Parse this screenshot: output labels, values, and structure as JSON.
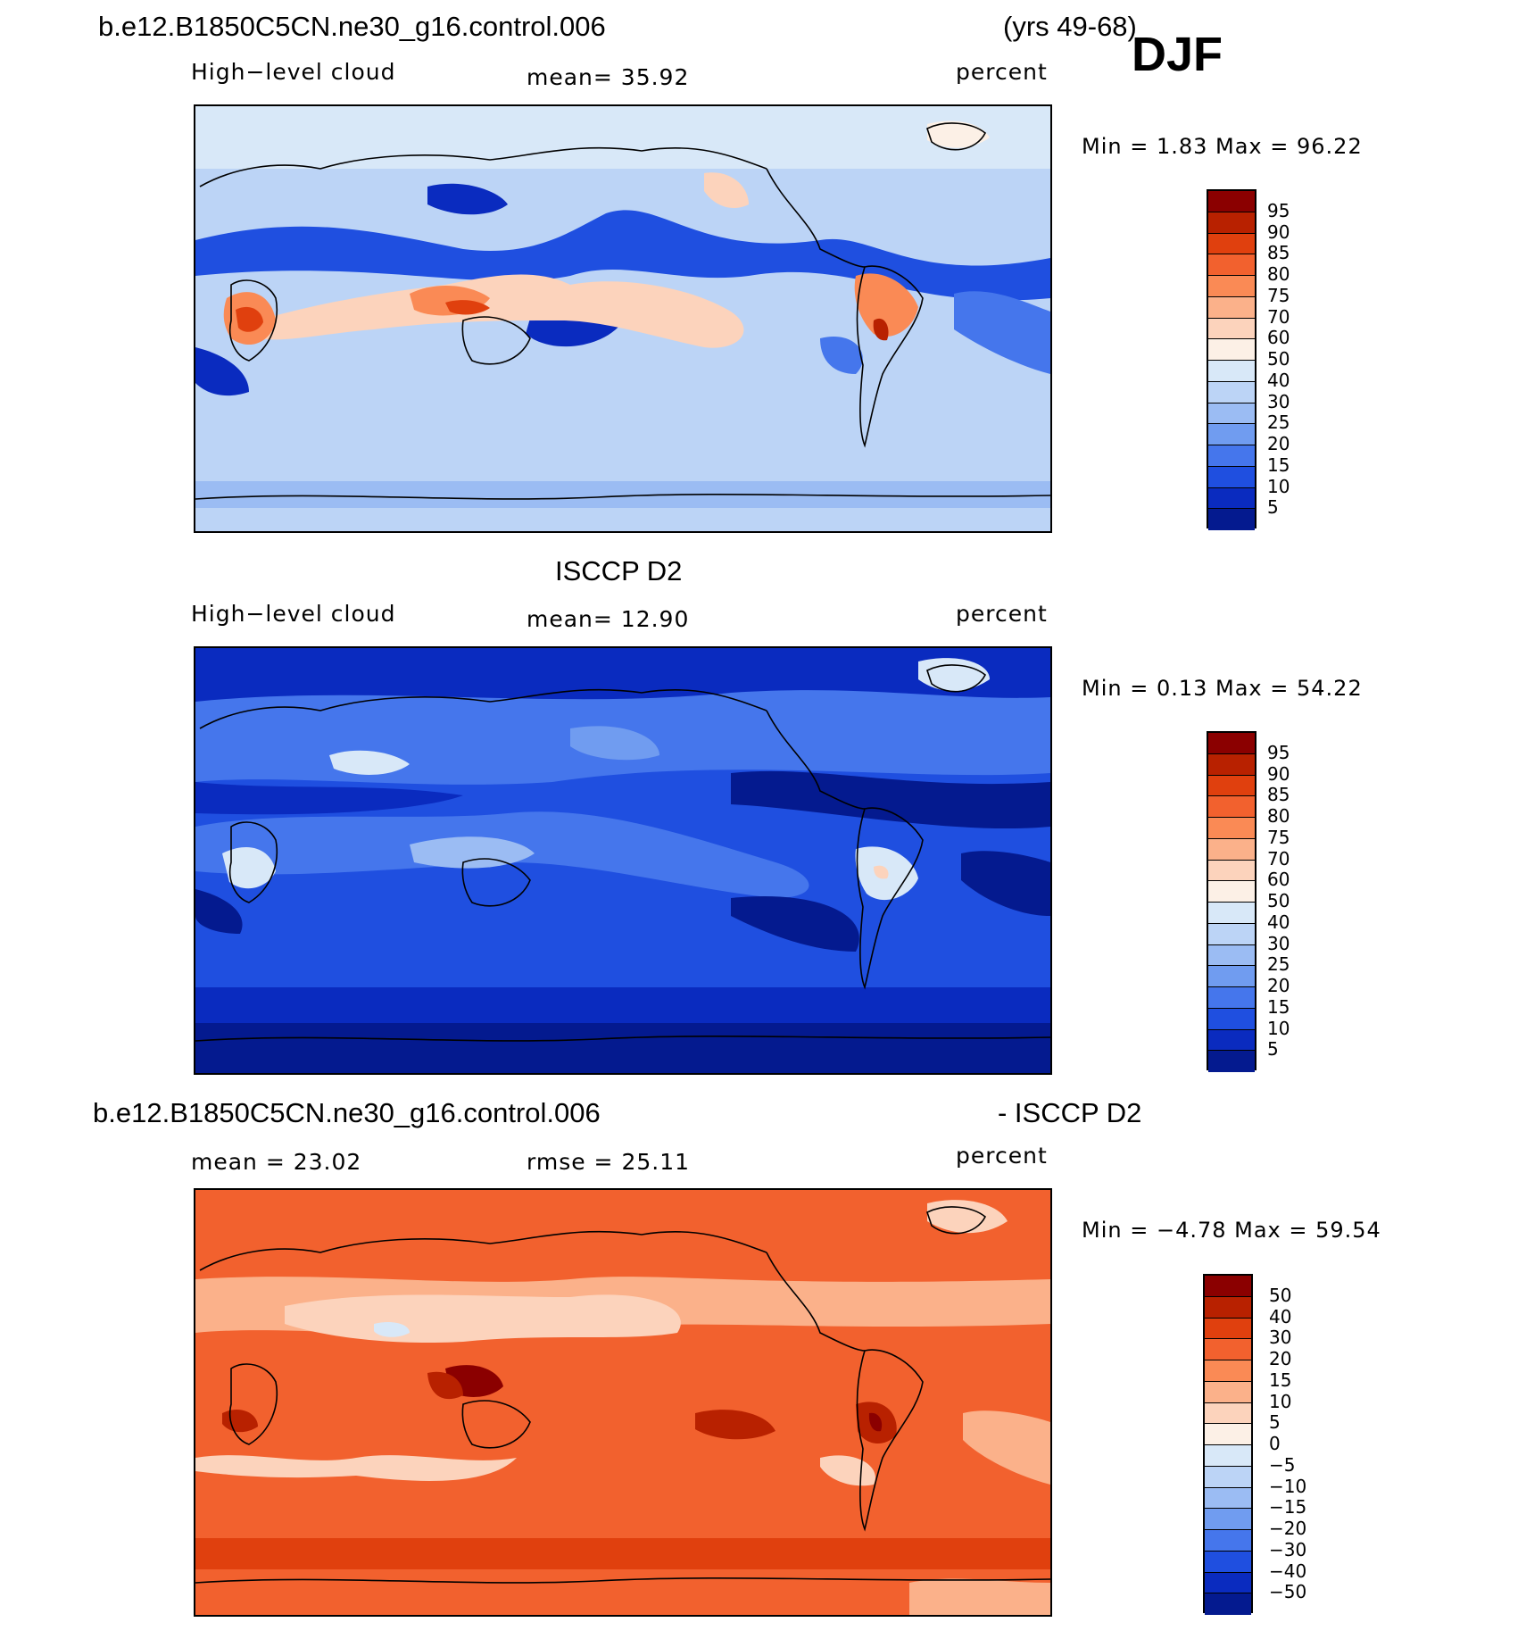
{
  "header": {
    "case_title": "b.e12.B1850C5CN.ne30_g16.control.006",
    "years": "(yrs 49-68)",
    "season": "DJF"
  },
  "panels": [
    {
      "title": "",
      "left_label": "High−level cloud",
      "center_label": "mean=   35.92",
      "units": "percent",
      "minmax": "Min =     1.83 Max =   96.22",
      "colorbar_labels": [
        "95",
        "90",
        "85",
        "80",
        "75",
        "70",
        "60",
        "50",
        "40",
        "30",
        "25",
        "20",
        "15",
        "10",
        "5"
      ],
      "palette": "cloud"
    },
    {
      "title": "ISCCP D2",
      "left_label": "High−level cloud",
      "center_label": "mean=   12.90",
      "units": "percent",
      "minmax": "Min =     0.13 Max =   54.22",
      "colorbar_labels": [
        "95",
        "90",
        "85",
        "80",
        "75",
        "70",
        "60",
        "50",
        "40",
        "30",
        "25",
        "20",
        "15",
        "10",
        "5"
      ],
      "palette": "cloud"
    },
    {
      "title_left": "b.e12.B1850C5CN.ne30_g16.control.006",
      "title_right": "- ISCCP D2",
      "left_label": "mean =   23.02",
      "center_label": "rmse =   25.11",
      "units": "percent",
      "minmax": "Min =  −4.78 Max =   59.54",
      "colorbar_labels": [
        "50",
        "40",
        "30",
        "20",
        "15",
        "10",
        "5",
        "0",
        "−5",
        "−10",
        "−15",
        "−20",
        "−30",
        "−40",
        "−50"
      ],
      "palette": "diff"
    }
  ],
  "colors": {
    "palette_top_to_bottom": [
      "#8b0000",
      "#b82100",
      "#e0400e",
      "#f2612e",
      "#fa8a55",
      "#fbb18a",
      "#fcd3bc",
      "#fcf0e6",
      "#d8e8f8",
      "#bcd4f6",
      "#9bbcf3",
      "#709cf0",
      "#4576ec",
      "#1f4fe0",
      "#0a2bbf",
      "#041a8f"
    ]
  }
}
